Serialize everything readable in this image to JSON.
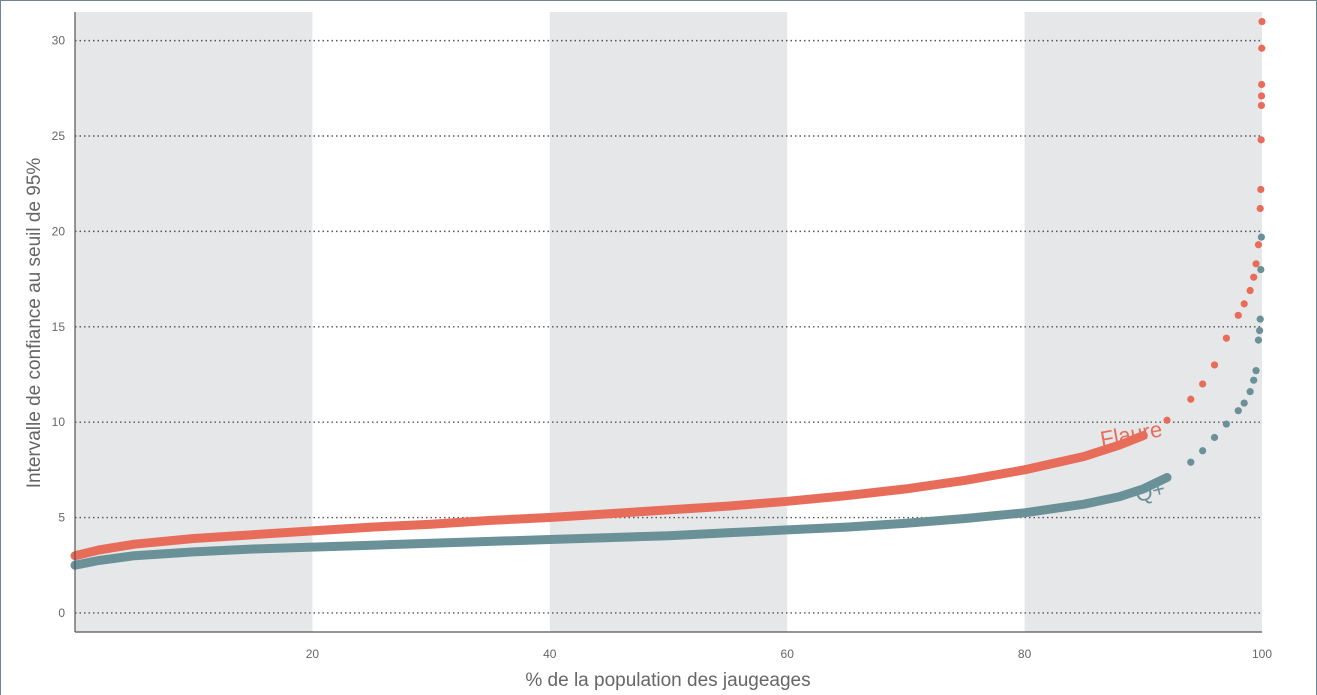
{
  "chart_data": {
    "type": "scatter",
    "title": "",
    "xlabel": "% de la population des jaugeages",
    "ylabel": "Intervalle de confiance au seuil de 95%",
    "xlim": [
      0,
      100
    ],
    "ylim": [
      -1,
      31.5
    ],
    "x_ticks": [
      20,
      40,
      60,
      80,
      100
    ],
    "y_ticks": [
      0,
      5,
      10,
      15,
      20,
      25,
      30
    ],
    "x_tick_labels": [
      "20",
      "40",
      "60",
      "80",
      "100"
    ],
    "y_tick_labels": [
      "0",
      "5",
      "10",
      "15",
      "20",
      "25",
      "30"
    ],
    "shaded_x_bands": [
      [
        0,
        20
      ],
      [
        40,
        60
      ],
      [
        80,
        100
      ]
    ],
    "grid": "horizontal-dotted",
    "series": [
      {
        "name": "Flaure",
        "color": "#e86c5a",
        "points": [
          [
            0,
            3.0
          ],
          [
            2,
            3.3
          ],
          [
            5,
            3.6
          ],
          [
            10,
            3.9
          ],
          [
            15,
            4.1
          ],
          [
            20,
            4.3
          ],
          [
            25,
            4.5
          ],
          [
            30,
            4.65
          ],
          [
            35,
            4.85
          ],
          [
            40,
            5.0
          ],
          [
            45,
            5.2
          ],
          [
            50,
            5.4
          ],
          [
            55,
            5.6
          ],
          [
            60,
            5.85
          ],
          [
            65,
            6.15
          ],
          [
            70,
            6.5
          ],
          [
            75,
            6.95
          ],
          [
            80,
            7.5
          ],
          [
            85,
            8.2
          ],
          [
            88,
            8.8
          ],
          [
            90,
            9.3
          ],
          [
            92,
            10.1
          ],
          [
            94,
            11.2
          ],
          [
            95,
            12.0
          ],
          [
            96,
            13.0
          ],
          [
            97,
            14.4
          ],
          [
            98,
            15.6
          ],
          [
            98.5,
            16.2
          ],
          [
            99,
            16.9
          ],
          [
            99.3,
            17.6
          ],
          [
            99.5,
            18.3
          ],
          [
            99.7,
            19.3
          ],
          [
            99.85,
            21.2
          ],
          [
            99.9,
            22.2
          ],
          [
            99.93,
            24.8
          ],
          [
            99.95,
            26.6
          ],
          [
            99.96,
            27.1
          ],
          [
            99.97,
            27.7
          ],
          [
            99.98,
            29.6
          ],
          [
            100,
            31.0
          ]
        ]
      },
      {
        "name": "Q+",
        "color": "#6b9198",
        "points": [
          [
            0,
            2.5
          ],
          [
            2,
            2.75
          ],
          [
            5,
            3.0
          ],
          [
            10,
            3.2
          ],
          [
            15,
            3.35
          ],
          [
            20,
            3.45
          ],
          [
            25,
            3.55
          ],
          [
            30,
            3.65
          ],
          [
            35,
            3.75
          ],
          [
            40,
            3.85
          ],
          [
            45,
            3.95
          ],
          [
            50,
            4.05
          ],
          [
            55,
            4.2
          ],
          [
            60,
            4.35
          ],
          [
            65,
            4.5
          ],
          [
            70,
            4.7
          ],
          [
            75,
            4.95
          ],
          [
            80,
            5.25
          ],
          [
            85,
            5.7
          ],
          [
            88,
            6.1
          ],
          [
            90,
            6.5
          ],
          [
            92,
            7.1
          ],
          [
            94,
            7.9
          ],
          [
            95,
            8.5
          ],
          [
            96,
            9.2
          ],
          [
            97,
            9.9
          ],
          [
            98,
            10.6
          ],
          [
            98.5,
            11.0
          ],
          [
            99,
            11.6
          ],
          [
            99.3,
            12.2
          ],
          [
            99.5,
            12.7
          ],
          [
            99.7,
            14.3
          ],
          [
            99.8,
            14.8
          ],
          [
            99.85,
            15.4
          ],
          [
            99.9,
            18.0
          ],
          [
            99.95,
            19.7
          ]
        ]
      }
    ],
    "annotations": [
      {
        "text": "Flaure",
        "series": "Flaure",
        "x": 86.5,
        "y": 8.7
      },
      {
        "text": "Q+",
        "series": "Q+",
        "x": 89.5,
        "y": 5.8
      }
    ]
  }
}
